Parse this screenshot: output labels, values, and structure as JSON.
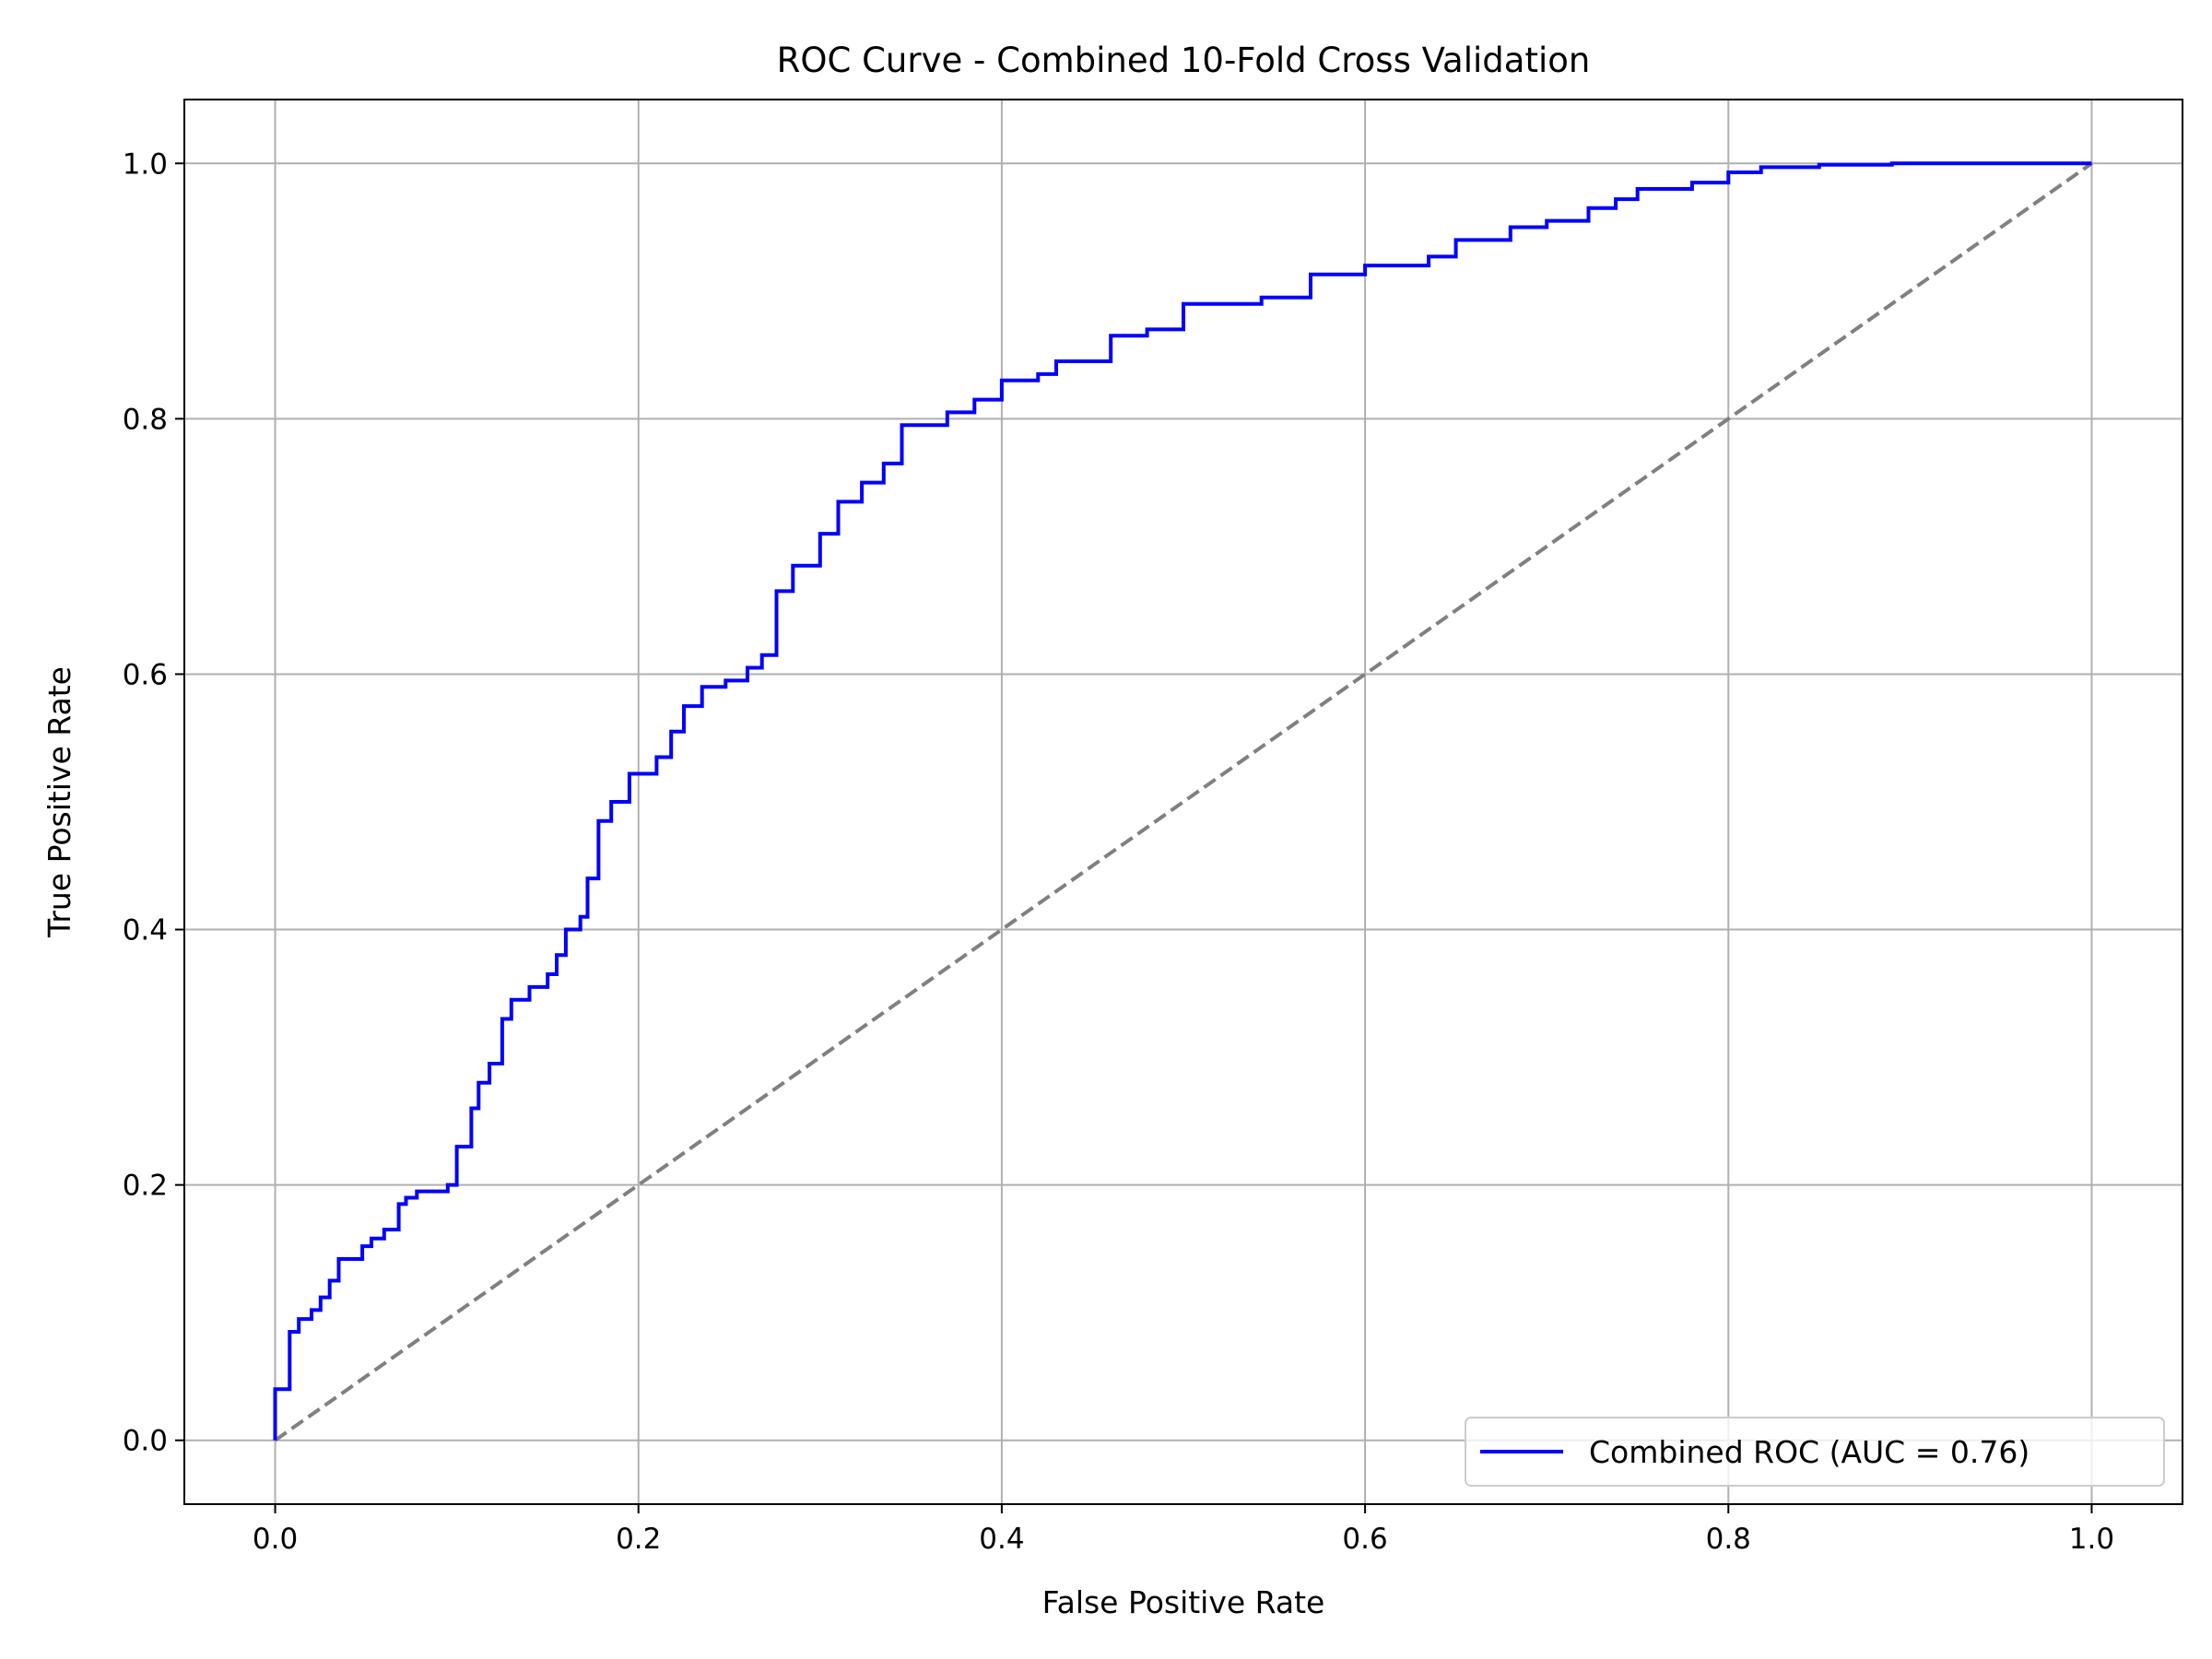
{
  "chart_data": {
    "type": "line",
    "title": "ROC Curve - Combined 10-Fold Cross Validation",
    "xlabel": "False Positive Rate",
    "ylabel": "True Positive Rate",
    "xlim": [
      -0.05,
      1.05
    ],
    "ylim": [
      -0.05,
      1.05
    ],
    "xticks": [
      0.0,
      0.2,
      0.4,
      0.6,
      0.8,
      1.0
    ],
    "yticks": [
      0.0,
      0.2,
      0.4,
      0.6,
      0.8,
      1.0
    ],
    "xtick_labels": [
      "0.0",
      "0.2",
      "0.4",
      "0.6",
      "0.8",
      "1.0"
    ],
    "ytick_labels": [
      "0.0",
      "0.2",
      "0.4",
      "0.6",
      "0.8",
      "1.0"
    ],
    "grid": true,
    "legend_position": "bottom-right",
    "series": [
      {
        "name": "Combined ROC (AUC = 0.76)",
        "color": "#0000ff",
        "style": "solid",
        "step": true,
        "x": [
          0.0,
          0.0,
          0.008,
          0.008,
          0.013,
          0.013,
          0.02,
          0.02,
          0.025,
          0.025,
          0.03,
          0.03,
          0.035,
          0.035,
          0.048,
          0.048,
          0.053,
          0.053,
          0.06,
          0.06,
          0.068,
          0.068,
          0.072,
          0.072,
          0.078,
          0.078,
          0.095,
          0.095,
          0.1,
          0.1,
          0.108,
          0.108,
          0.112,
          0.112,
          0.118,
          0.118,
          0.125,
          0.125,
          0.13,
          0.13,
          0.14,
          0.14,
          0.15,
          0.15,
          0.155,
          0.155,
          0.16,
          0.16,
          0.168,
          0.168,
          0.172,
          0.172,
          0.178,
          0.178,
          0.185,
          0.185,
          0.195,
          0.195,
          0.21,
          0.21,
          0.218,
          0.218,
          0.225,
          0.225,
          0.235,
          0.235,
          0.248,
          0.248,
          0.26,
          0.26,
          0.268,
          0.268,
          0.276,
          0.276,
          0.285,
          0.285,
          0.3,
          0.3,
          0.31,
          0.31,
          0.323,
          0.323,
          0.335,
          0.335,
          0.345,
          0.345,
          0.37,
          0.37,
          0.385,
          0.385,
          0.4,
          0.4,
          0.42,
          0.42,
          0.43,
          0.43,
          0.46,
          0.46,
          0.48,
          0.48,
          0.5,
          0.5,
          0.543,
          0.543,
          0.57,
          0.57,
          0.6,
          0.6,
          0.635,
          0.635,
          0.65,
          0.65,
          0.68,
          0.68,
          0.7,
          0.7,
          0.723,
          0.723,
          0.738,
          0.738,
          0.75,
          0.75,
          0.78,
          0.78,
          0.8,
          0.8,
          0.818,
          0.818,
          0.85,
          0.85,
          0.89,
          0.89,
          1.0
        ],
        "y": [
          0.0,
          0.04,
          0.04,
          0.085,
          0.085,
          0.095,
          0.095,
          0.102,
          0.102,
          0.112,
          0.112,
          0.125,
          0.125,
          0.142,
          0.142,
          0.152,
          0.152,
          0.158,
          0.158,
          0.165,
          0.165,
          0.185,
          0.185,
          0.19,
          0.19,
          0.195,
          0.195,
          0.2,
          0.2,
          0.23,
          0.23,
          0.26,
          0.26,
          0.28,
          0.28,
          0.295,
          0.295,
          0.33,
          0.33,
          0.345,
          0.345,
          0.355,
          0.355,
          0.365,
          0.365,
          0.38,
          0.38,
          0.4,
          0.4,
          0.41,
          0.41,
          0.44,
          0.44,
          0.485,
          0.485,
          0.5,
          0.5,
          0.522,
          0.522,
          0.535,
          0.535,
          0.555,
          0.555,
          0.575,
          0.575,
          0.59,
          0.59,
          0.595,
          0.595,
          0.605,
          0.605,
          0.615,
          0.615,
          0.665,
          0.665,
          0.685,
          0.685,
          0.71,
          0.71,
          0.735,
          0.735,
          0.75,
          0.75,
          0.765,
          0.765,
          0.795,
          0.795,
          0.805,
          0.805,
          0.815,
          0.815,
          0.83,
          0.83,
          0.835,
          0.835,
          0.845,
          0.845,
          0.865,
          0.865,
          0.87,
          0.87,
          0.89,
          0.89,
          0.895,
          0.895,
          0.913,
          0.913,
          0.92,
          0.92,
          0.927,
          0.927,
          0.94,
          0.94,
          0.95,
          0.95,
          0.955,
          0.955,
          0.965,
          0.965,
          0.972,
          0.972,
          0.98,
          0.98,
          0.985,
          0.985,
          0.993,
          0.993,
          0.997,
          0.997,
          0.999,
          0.999,
          1.0,
          1.0
        ]
      },
      {
        "color": "#808080",
        "style": "dashed",
        "x": [
          0.0,
          1.0
        ],
        "y": [
          0.0,
          1.0
        ]
      }
    ]
  }
}
